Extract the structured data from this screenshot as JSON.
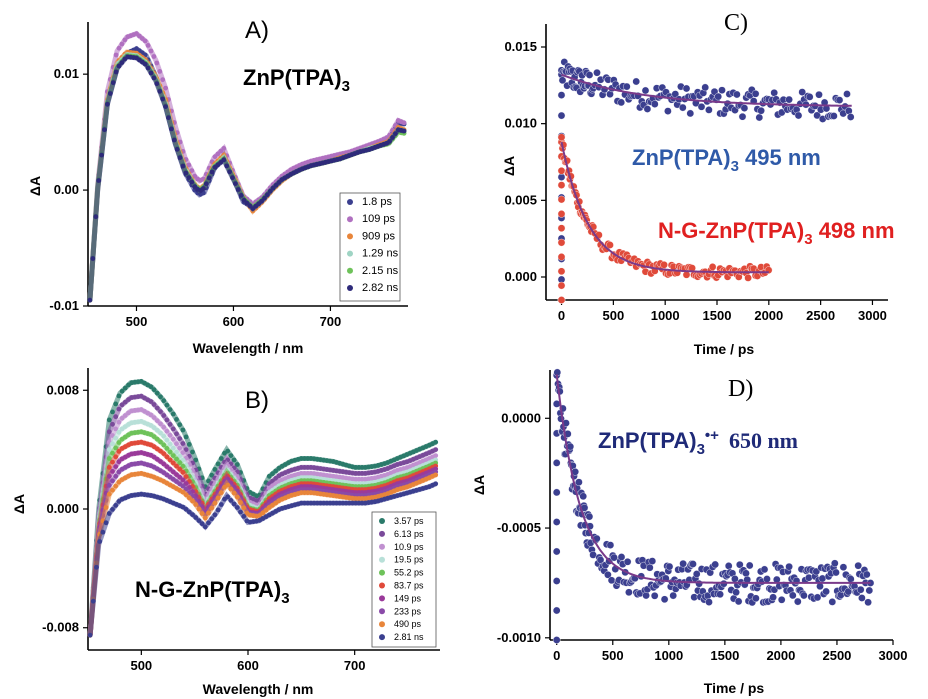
{
  "chart_data": [
    {
      "id": "A",
      "type": "line",
      "panel_label": "A)",
      "compound_label": "ZnP(TPA)",
      "compound_sub": "3",
      "xlabel": "Wavelength / nm",
      "ylabel": "ΔA",
      "xlim": [
        450,
        780
      ],
      "ylim": [
        -0.01,
        0.0145
      ],
      "xticks": [
        500,
        600,
        700
      ],
      "xticklabels": [
        "500",
        "600",
        "700"
      ],
      "yticks": [
        -0.01,
        0.0,
        0.01
      ],
      "yticklabels": [
        "-0.01",
        "0.00",
        "0.01"
      ],
      "legend_position": "bottom-right",
      "x": [
        452,
        460,
        470,
        480,
        490,
        500,
        510,
        520,
        530,
        540,
        550,
        560,
        565,
        570,
        580,
        590,
        600,
        610,
        620,
        630,
        640,
        650,
        660,
        670,
        680,
        690,
        700,
        710,
        720,
        730,
        740,
        750,
        760,
        770,
        776
      ],
      "series": [
        {
          "name": "1.8 ps",
          "color": "#3b3f8f",
          "values": [
            -0.0095,
            0.0,
            0.0075,
            0.0105,
            0.0118,
            0.0122,
            0.0116,
            0.0098,
            0.0072,
            0.004,
            0.0015,
            0.0,
            -0.0004,
            -0.0002,
            0.0018,
            0.003,
            0.001,
            -0.001,
            -0.0015,
            -0.0008,
            0.0002,
            0.001,
            0.0016,
            0.002,
            0.0023,
            0.0025,
            0.0027,
            0.003,
            0.0032,
            0.0035,
            0.0038,
            0.004,
            0.0043,
            0.0058,
            0.0057
          ]
        },
        {
          "name": "109 ps",
          "color": "#b070c0",
          "values": [
            -0.0095,
            0.0005,
            0.0085,
            0.012,
            0.0132,
            0.0135,
            0.0128,
            0.0112,
            0.0088,
            0.0055,
            0.0028,
            0.0012,
            0.0008,
            0.001,
            0.0028,
            0.0036,
            0.0015,
            -0.0005,
            -0.0012,
            -0.0006,
            0.0004,
            0.0012,
            0.0018,
            0.0022,
            0.0025,
            0.0027,
            0.0029,
            0.0031,
            0.0033,
            0.0036,
            0.0039,
            0.0042,
            0.0046,
            0.006,
            0.0058
          ]
        },
        {
          "name": "909 ps",
          "color": "#e8853a",
          "values": [
            -0.0095,
            0.0002,
            0.0078,
            0.011,
            0.0119,
            0.0118,
            0.0112,
            0.0098,
            0.0078,
            0.0045,
            0.002,
            0.0005,
            0.0001,
            0.0004,
            0.0022,
            0.003,
            0.0012,
            -0.0006,
            -0.0018,
            -0.001,
            0.0,
            0.0008,
            0.0014,
            0.0018,
            0.0021,
            0.0023,
            0.0025,
            0.0028,
            0.003,
            0.0033,
            0.0036,
            0.0039,
            0.0042,
            0.0054,
            0.0052
          ]
        },
        {
          "name": "1.29 ns",
          "color": "#9fd4c4",
          "values": [
            -0.0095,
            0.0002,
            0.0076,
            0.0108,
            0.0117,
            0.0116,
            0.011,
            0.0096,
            0.0074,
            0.0042,
            0.0018,
            0.0004,
            0.0,
            0.0003,
            0.002,
            0.0028,
            0.001,
            -0.0007,
            -0.0016,
            -0.0009,
            0.0001,
            0.0009,
            0.0014,
            0.0018,
            0.0021,
            0.0023,
            0.0025,
            0.0027,
            0.003,
            0.0033,
            0.0036,
            0.0038,
            0.0041,
            0.0052,
            0.0051
          ]
        },
        {
          "name": "2.15 ns",
          "color": "#6ec25a",
          "values": [
            -0.0095,
            0.0002,
            0.0075,
            0.0106,
            0.0116,
            0.0115,
            0.0109,
            0.0095,
            0.0073,
            0.0041,
            0.0017,
            0.0004,
            0.0,
            0.0003,
            0.002,
            0.0027,
            0.001,
            -0.0007,
            -0.0015,
            -0.0008,
            0.0001,
            0.0009,
            0.0014,
            0.0018,
            0.0021,
            0.0023,
            0.0025,
            0.0027,
            0.003,
            0.0033,
            0.0035,
            0.0038,
            0.004,
            0.005,
            0.0049
          ]
        },
        {
          "name": "2.82 ns",
          "color": "#2e2a7a",
          "values": [
            -0.0095,
            0.0001,
            0.0074,
            0.0105,
            0.0115,
            0.0114,
            0.0108,
            0.0094,
            0.0072,
            0.004,
            0.0016,
            0.0003,
            -0.0001,
            0.0002,
            0.0019,
            0.0026,
            0.0009,
            -0.0008,
            -0.0016,
            -0.0009,
            0.0001,
            0.0009,
            0.0014,
            0.0018,
            0.0021,
            0.0023,
            0.0025,
            0.0027,
            0.003,
            0.0033,
            0.0035,
            0.0038,
            0.0041,
            0.0052,
            0.0051
          ]
        }
      ]
    },
    {
      "id": "B",
      "type": "line",
      "panel_label": "B)",
      "compound_label": "N-G-ZnP(TPA)",
      "compound_sub": "3",
      "xlabel": "Wavelength / nm",
      "ylabel": "ΔA",
      "xlim": [
        450,
        780
      ],
      "ylim": [
        -0.0095,
        0.0095
      ],
      "xticks": [
        500,
        600,
        700
      ],
      "xticklabels": [
        "500",
        "600",
        "700"
      ],
      "yticks": [
        -0.008,
        0.0,
        0.008
      ],
      "yticklabels": [
        "-0.008",
        "0.000",
        "0.008"
      ],
      "legend_position": "bottom-right",
      "x": [
        452,
        460,
        470,
        480,
        490,
        500,
        510,
        520,
        530,
        540,
        550,
        560,
        570,
        580,
        590,
        600,
        610,
        620,
        630,
        640,
        650,
        660,
        670,
        680,
        690,
        700,
        710,
        720,
        730,
        740,
        750,
        760,
        770,
        776
      ],
      "series": [
        {
          "name": "3.57 ps",
          "color": "#2a7a6a",
          "values": [
            -0.0085,
            0.0,
            0.006,
            0.0078,
            0.0085,
            0.0086,
            0.0082,
            0.0074,
            0.0064,
            0.0052,
            0.0035,
            0.0015,
            0.0028,
            0.004,
            0.003,
            0.0012,
            0.0008,
            0.0022,
            0.0028,
            0.0032,
            0.0034,
            0.0034,
            0.0033,
            0.0032,
            0.003,
            0.0028,
            0.0028,
            0.0029,
            0.0031,
            0.0034,
            0.0037,
            0.004,
            0.0043,
            0.0045
          ]
        },
        {
          "name": "6.13 ps",
          "color": "#7a4a9a",
          "values": [
            -0.0085,
            -0.0005,
            0.0052,
            0.0069,
            0.0075,
            0.0076,
            0.0072,
            0.0064,
            0.0054,
            0.0043,
            0.0028,
            0.001,
            0.0022,
            0.0034,
            0.0025,
            0.0008,
            0.0005,
            0.0017,
            0.0023,
            0.0026,
            0.0028,
            0.0028,
            0.0027,
            0.0026,
            0.0025,
            0.0024,
            0.0024,
            0.0025,
            0.0027,
            0.003,
            0.0032,
            0.0035,
            0.0038,
            0.004
          ]
        },
        {
          "name": "10.9 ps",
          "color": "#c090d0",
          "values": [
            -0.0085,
            -0.0008,
            0.0045,
            0.006,
            0.0066,
            0.0067,
            0.0063,
            0.0056,
            0.0047,
            0.0037,
            0.0023,
            0.0006,
            0.0018,
            0.003,
            0.0021,
            0.0005,
            0.0002,
            0.0014,
            0.0019,
            0.0022,
            0.0024,
            0.0024,
            0.0023,
            0.0022,
            0.0021,
            0.002,
            0.002,
            0.0021,
            0.0023,
            0.0026,
            0.0028,
            0.0031,
            0.0034,
            0.0036
          ]
        },
        {
          "name": "19.5 ps",
          "color": "#b8e0d8",
          "values": [
            -0.0085,
            -0.001,
            0.004,
            0.0053,
            0.0058,
            0.0059,
            0.0056,
            0.005,
            0.0041,
            0.0032,
            0.0019,
            0.0003,
            0.0015,
            0.0027,
            0.0018,
            0.0003,
            0.0,
            0.0011,
            0.0016,
            0.0019,
            0.0021,
            0.0021,
            0.002,
            0.0019,
            0.0018,
            0.0017,
            0.0017,
            0.0018,
            0.002,
            0.0023,
            0.0025,
            0.0028,
            0.0031,
            0.0033
          ]
        },
        {
          "name": "55.2 ps",
          "color": "#6ec25a",
          "values": [
            -0.0085,
            -0.0012,
            0.0034,
            0.0046,
            0.0051,
            0.0052,
            0.005,
            0.0044,
            0.0036,
            0.0028,
            0.0016,
            0.0001,
            0.0013,
            0.0025,
            0.0016,
            0.0001,
            -0.0001,
            0.0009,
            0.0014,
            0.0017,
            0.0019,
            0.0019,
            0.0018,
            0.0017,
            0.0016,
            0.0015,
            0.0015,
            0.0016,
            0.0018,
            0.0021,
            0.0023,
            0.0026,
            0.0029,
            0.0031
          ]
        },
        {
          "name": "83.7 ps",
          "color": "#e04a3a",
          "values": [
            -0.0085,
            -0.0014,
            0.0028,
            0.004,
            0.0044,
            0.0045,
            0.0043,
            0.0038,
            0.0031,
            0.0024,
            0.0013,
            0.0,
            0.0011,
            0.0023,
            0.0014,
            0.0,
            -0.0002,
            0.0007,
            0.0012,
            0.0015,
            0.0017,
            0.0017,
            0.0016,
            0.0015,
            0.0014,
            0.0013,
            0.0013,
            0.0014,
            0.0016,
            0.0019,
            0.0021,
            0.0024,
            0.0027,
            0.0029
          ]
        },
        {
          "name": "149 ps",
          "color": "#9a3a9a",
          "values": [
            -0.0085,
            -0.0016,
            0.0022,
            0.0033,
            0.0037,
            0.0038,
            0.0036,
            0.0031,
            0.0025,
            0.0019,
            0.001,
            -0.0002,
            0.0009,
            0.0021,
            0.0012,
            -0.0002,
            -0.0003,
            0.0005,
            0.001,
            0.0013,
            0.0015,
            0.0015,
            0.0014,
            0.0013,
            0.0012,
            0.0011,
            0.0011,
            0.0012,
            0.0014,
            0.0017,
            0.0019,
            0.0022,
            0.0025,
            0.0027
          ]
        },
        {
          "name": "233 ps",
          "color": "#8a4aa8",
          "values": [
            -0.0085,
            -0.0018,
            0.0016,
            0.0026,
            0.003,
            0.0031,
            0.0029,
            0.0025,
            0.002,
            0.0015,
            0.0007,
            -0.0004,
            0.0007,
            0.0019,
            0.001,
            -0.0003,
            -0.0004,
            0.0003,
            0.0008,
            0.0011,
            0.0013,
            0.0013,
            0.0012,
            0.0011,
            0.001,
            0.0009,
            0.0009,
            0.001,
            0.0012,
            0.0015,
            0.0017,
            0.002,
            0.0023,
            0.0025
          ]
        },
        {
          "name": "490 ps",
          "color": "#e8853a",
          "values": [
            -0.0085,
            -0.002,
            0.001,
            0.0019,
            0.0023,
            0.0024,
            0.0022,
            0.0019,
            0.0015,
            0.0011,
            0.0004,
            -0.0006,
            0.0005,
            0.0017,
            0.0008,
            -0.0004,
            -0.0005,
            0.0001,
            0.0006,
            0.0009,
            0.0011,
            0.0011,
            0.001,
            0.0009,
            0.0008,
            0.0007,
            0.0007,
            0.0008,
            0.001,
            0.0013,
            0.0015,
            0.0018,
            0.0021,
            0.0023
          ]
        },
        {
          "name": "2.81 ns",
          "color": "#3b3f8f",
          "values": [
            -0.0085,
            -0.0024,
            -0.0003,
            0.0006,
            0.0009,
            0.001,
            0.0009,
            0.0007,
            0.0004,
            0.0001,
            -0.0005,
            -0.0012,
            -0.0003,
            0.0009,
            0.0001,
            -0.0009,
            -0.0008,
            -0.0004,
            0.0,
            0.0002,
            0.0004,
            0.0004,
            0.0004,
            0.0004,
            0.0004,
            0.0004,
            0.0004,
            0.0005,
            0.0007,
            0.0009,
            0.0011,
            0.0013,
            0.0015,
            0.0017
          ]
        }
      ]
    },
    {
      "id": "C",
      "type": "scatter",
      "panel_label": "C)",
      "xlabel": "Time / ps",
      "ylabel": "ΔA",
      "xlim": [
        -150,
        3150
      ],
      "ylim": [
        -0.0015,
        0.0165
      ],
      "xticks": [
        0,
        500,
        1000,
        1500,
        2000,
        2500,
        3000
      ],
      "xticklabels": [
        "0",
        "500",
        "1000",
        "1500",
        "2000",
        "2500",
        "3000"
      ],
      "yticks": [
        0.0,
        0.005,
        0.01,
        0.015
      ],
      "yticklabels": [
        "0.000",
        "0.005",
        "0.010",
        "0.015"
      ],
      "series": [
        {
          "name": "ZnP(TPA)3 495 nm",
          "label_main": "ZnP(TPA)",
          "label_sub": "3",
          "label_tail": " 495 nm",
          "color": "#3b3f8f",
          "label_color": "#2f5aa8",
          "fit": {
            "a": 0.0021,
            "tau": 800,
            "c": 0.0111
          },
          "t_max": 2800,
          "noise": 0.0009
        },
        {
          "name": "N-G-ZnP(TPA)3 498 nm",
          "label_main": "N-G-ZnP(TPA)",
          "label_sub": "3",
          "label_tail": " 498 nm",
          "color": "#e04a3a",
          "label_color": "#e02020",
          "fit": {
            "a": 0.0085,
            "tau": 260,
            "c": 0.0003
          },
          "t_max": 2000,
          "noise": 0.0004
        }
      ]
    },
    {
      "id": "D",
      "type": "scatter",
      "panel_label": "D)",
      "xlabel": "Time / ps",
      "ylabel": "ΔA",
      "xlim": [
        -60,
        3000
      ],
      "ylim": [
        -0.00101,
        0.00022
      ],
      "xticks": [
        0,
        500,
        1000,
        1500,
        2000,
        2500,
        3000
      ],
      "xticklabels": [
        "0",
        "500",
        "1000",
        "1500",
        "2000",
        "2500",
        "3000"
      ],
      "yticks": [
        -0.001,
        -0.0005,
        0.0
      ],
      "yticklabels": [
        "-0.0010",
        "-0.0005",
        "0.0000"
      ],
      "series": [
        {
          "name": "ZnP(TPA)3•+ 650 nm",
          "label_main": "ZnP(TPA)",
          "label_sub": "3",
          "label_sup": "•+",
          "label_tail": "650 nm",
          "color": "#3b3f8f",
          "label_color": "#1f2a78",
          "fit_color": "#7a3a8a",
          "fit": {
            "a": 0.00095,
            "tau": 210,
            "c": -0.00075
          },
          "t_max": 2800,
          "noise": 9e-05
        }
      ]
    }
  ]
}
